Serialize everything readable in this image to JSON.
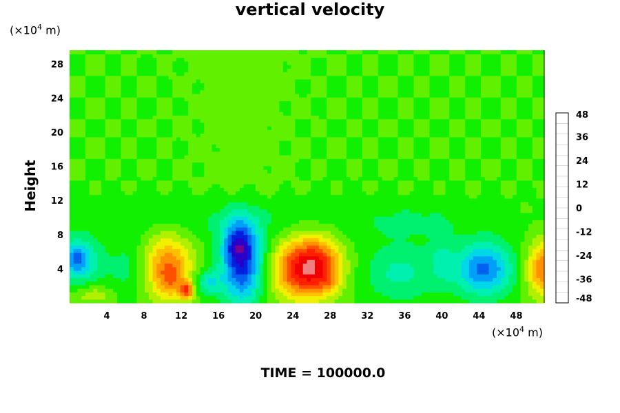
{
  "chart_data": {
    "type": "heatmap",
    "title": "vertical velocity",
    "ylabel": "Height",
    "xlabel": "",
    "x_unit": {
      "prefix": "(×10",
      "exp": "4",
      "suffix": " m)"
    },
    "y_unit": {
      "prefix": "(×10",
      "exp": "4",
      "suffix": " m)"
    },
    "xlim": [
      0,
      51
    ],
    "ylim": [
      0,
      29.6
    ],
    "x_ticks": [
      4,
      8,
      12,
      16,
      20,
      24,
      28,
      32,
      36,
      40,
      44,
      48
    ],
    "y_ticks": [
      4,
      8,
      12,
      16,
      20,
      24,
      28
    ],
    "colorbar": {
      "range": [
        -48,
        48
      ],
      "ticks": [
        48,
        36,
        24,
        12,
        0,
        -12,
        -24,
        -36,
        -48
      ],
      "colors": [
        "#7a0090",
        "#2a00c8",
        "#0020e0",
        "#0060f0",
        "#00a0f8",
        "#00d8e8",
        "#00f0b0",
        "#00f070",
        "#10f000",
        "#60f000",
        "#b0f000",
        "#f0f000",
        "#ffc000",
        "#ff9000",
        "#ff5000",
        "#ff2000",
        "#f00000",
        "#f08080"
      ]
    },
    "background_value": 0,
    "features": [
      {
        "x": 1.0,
        "z": 5.0,
        "sx": 1.6,
        "sz": 2.0,
        "value": -20
      },
      {
        "x": 0.8,
        "z": 5.2,
        "sx": 0.7,
        "sz": 1.0,
        "value": -10
      },
      {
        "x": 2.5,
        "z": 1.0,
        "sx": 1.5,
        "sz": 0.8,
        "value": 10
      },
      {
        "x": 6.5,
        "z": 4.0,
        "sx": 1.8,
        "sz": 2.5,
        "value": -8
      },
      {
        "x": 10.5,
        "z": 4.2,
        "sx": 1.9,
        "sz": 2.8,
        "value": 26
      },
      {
        "x": 11.0,
        "z": 2.8,
        "sx": 0.9,
        "sz": 1.2,
        "value": 8
      },
      {
        "x": 12.6,
        "z": 1.5,
        "sx": 0.5,
        "sz": 0.7,
        "value": 26
      },
      {
        "x": 14.8,
        "z": 2.4,
        "sx": 1.0,
        "sz": 1.0,
        "value": -16
      },
      {
        "x": 18.5,
        "z": 5.0,
        "sx": 1.6,
        "sz": 3.5,
        "value": -36
      },
      {
        "x": 18.0,
        "z": 7.0,
        "sx": 0.9,
        "sz": 1.5,
        "value": -12
      },
      {
        "x": 24.5,
        "z": 4.0,
        "sx": 2.0,
        "sz": 2.5,
        "value": 30
      },
      {
        "x": 27.0,
        "z": 4.5,
        "sx": 1.8,
        "sz": 2.4,
        "value": 26
      },
      {
        "x": 28.0,
        "z": 2.5,
        "sx": 0.9,
        "sz": 0.9,
        "value": 6
      },
      {
        "x": 35.5,
        "z": 3.5,
        "sx": 2.8,
        "sz": 2.4,
        "value": -12
      },
      {
        "x": 40.0,
        "z": 5.0,
        "sx": 1.0,
        "sz": 2.0,
        "value": -8
      },
      {
        "x": 44.5,
        "z": 4.0,
        "sx": 2.2,
        "sz": 2.2,
        "value": -28
      },
      {
        "x": 50.8,
        "z": 4.0,
        "sx": 1.2,
        "sz": 2.3,
        "value": 26
      },
      {
        "x": 25.0,
        "z": 9.5,
        "sx": 14.0,
        "sz": 2.0,
        "value": -4
      },
      {
        "x": 12.0,
        "z": 10.5,
        "sx": 6.0,
        "sz": 1.5,
        "value": -3
      },
      {
        "x": 37.0,
        "z": 9.5,
        "sx": 3.0,
        "sz": 1.0,
        "value": -5
      },
      {
        "x": 18.5,
        "z": 14.0,
        "sx": 3.0,
        "sz": 4.0,
        "value": 3
      }
    ],
    "footer": "TIME = 100000.0"
  }
}
